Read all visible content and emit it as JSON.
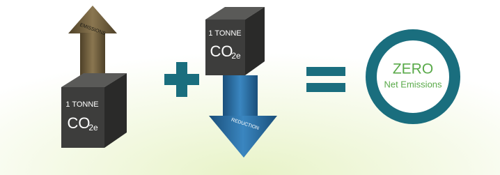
{
  "left_arrow": {
    "label": "EMISSIONS"
  },
  "left_cube": {
    "line1": "1 TONNE",
    "formula": {
      "main": "CO",
      "sub": "2e"
    }
  },
  "right_cube": {
    "line1": "1 TONNE",
    "formula": {
      "main": "CO",
      "sub": "2e"
    }
  },
  "right_arrow": {
    "label": "REDUCTION"
  },
  "result": {
    "title": "ZERO",
    "subtitle": "Net Emissions"
  }
}
